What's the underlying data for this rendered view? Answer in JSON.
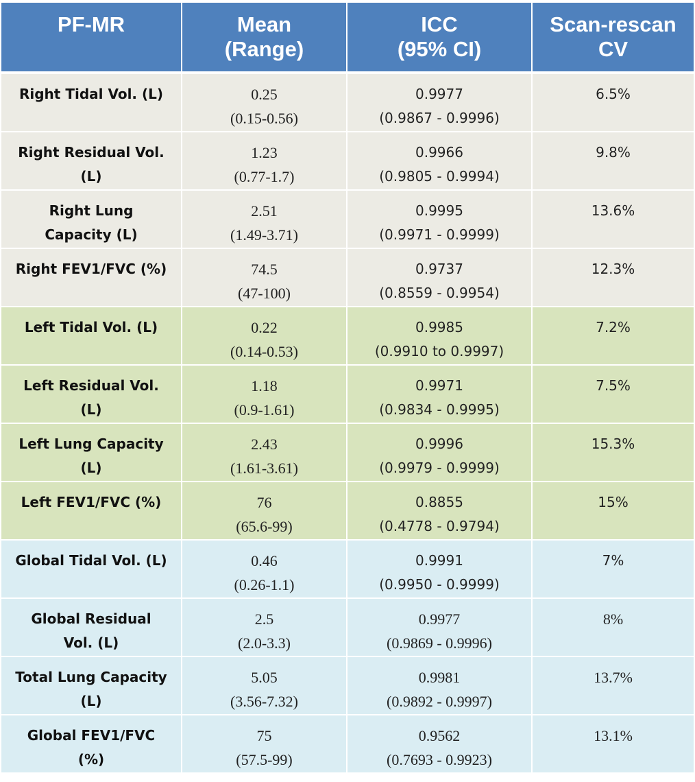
{
  "header": {
    "col1": "PF-MR",
    "col2_line1": "Mean",
    "col2_line2": "(Range)",
    "col3_line1": "ICC",
    "col3_line2": "(95% CI)",
    "col4_line1": "Scan-rescan",
    "col4_line2": "CV"
  },
  "rows": [
    {
      "group": "right",
      "label_line1": "Right Tidal Vol. (L)",
      "label_line2": "",
      "mean": "0.25",
      "range": "(0.15-0.56)",
      "icc": "0.9977",
      "ci": "(0.9867 - 0.9996)",
      "cv": "6.5%"
    },
    {
      "group": "right",
      "label_line1": "Right Residual Vol.",
      "label_line2": "(L)",
      "mean": "1.23",
      "range": "(0.77-1.7)",
      "icc": "0.9966",
      "ci": "(0.9805 - 0.9994)",
      "cv": "9.8%"
    },
    {
      "group": "right",
      "label_line1": "Right Lung",
      "label_line2": "Capacity (L)",
      "mean": "2.51",
      "range": "(1.49-3.71)",
      "icc": "0.9995",
      "ci": "(0.9971 - 0.9999)",
      "cv": "13.6%"
    },
    {
      "group": "right",
      "label_line1": "Right FEV1/FVC (%)",
      "label_line2": "",
      "mean": "74.5",
      "range": "(47-100)",
      "icc": "0.9737",
      "ci": "(0.8559 - 0.9954)",
      "cv": "12.3%"
    },
    {
      "group": "left",
      "label_line1": "Left Tidal Vol. (L)",
      "label_line2": "",
      "mean": "0.22",
      "range": "(0.14-0.53)",
      "icc": "0.9985",
      "ci": "(0.9910 to 0.9997)",
      "cv": "7.2%"
    },
    {
      "group": "left",
      "label_line1": "Left Residual Vol.",
      "label_line2": "(L)",
      "mean": "1.18",
      "range": "(0.9-1.61)",
      "icc": "0.9971",
      "ci": "(0.9834 - 0.9995)",
      "cv": "7.5%"
    },
    {
      "group": "left",
      "label_line1": "Left Lung Capacity",
      "label_line2": "(L)",
      "mean": "2.43",
      "range": "(1.61-3.61)",
      "icc": "0.9996",
      "ci": "(0.9979 - 0.9999)",
      "cv": "15.3%"
    },
    {
      "group": "left",
      "label_line1": "Left FEV1/FVC (%)",
      "label_line2": "",
      "mean": "76",
      "range": "(65.6-99)",
      "icc": "0.8855",
      "ci": "(0.4778 - 0.9794)",
      "cv": "15%"
    },
    {
      "group": "global",
      "label_line1": "Global Tidal Vol. (L)",
      "label_line2": "",
      "mean": "0.46",
      "range": "(0.26-1.1)",
      "icc": "0.9991",
      "ci": "(0.9950 - 0.9999)",
      "cv": "7%"
    },
    {
      "group": "global",
      "label_line1": "Global Residual",
      "label_line2": "Vol. (L)",
      "mean": "2.5",
      "range": "(2.0-3.3)",
      "icc": "0.9977",
      "ci": "(0.9869 - 0.9996)",
      "cv": "8%"
    },
    {
      "group": "global",
      "label_line1": "Total Lung Capacity",
      "label_line2": "(L)",
      "mean": "5.05",
      "range": "(3.56-7.32)",
      "icc": "0.9981",
      "ci": "(0.9892 - 0.9997)",
      "cv": "13.7%"
    },
    {
      "group": "global",
      "label_line1": "Global FEV1/FVC",
      "label_line2": "(%)",
      "mean": "75",
      "range": "(57.5-99)",
      "icc": "0.9562",
      "ci": "(0.7693 - 0.9923)",
      "cv": "13.1%"
    }
  ],
  "styles": {
    "header_bg": "#4f81bd",
    "right_bg": "#ecebe4",
    "left_bg": "#d8e4bd",
    "global_bg": "#daedf3",
    "serif_icc_rows": [
      9,
      10,
      11
    ],
    "sans_cv_rows": [
      0,
      1,
      2,
      3,
      4,
      5,
      6,
      7,
      8
    ]
  }
}
